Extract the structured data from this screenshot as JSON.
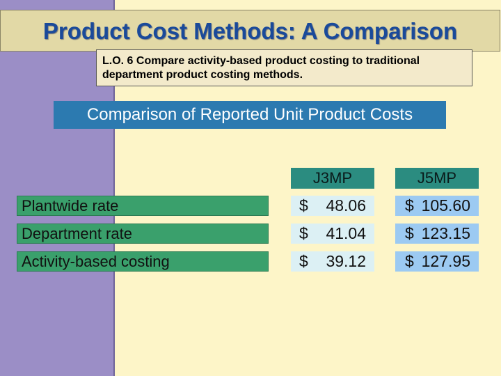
{
  "title": "Product Cost Methods: A Comparison",
  "learning_objective": {
    "line1": "L.O. 6 Compare activity-based product costing to traditional",
    "line2": "department product costing methods."
  },
  "subtitle": "Comparison of Reported Unit Product Costs",
  "table": {
    "columns": [
      "J3MP",
      "J5MP"
    ],
    "currency_symbol": "$",
    "rows": [
      {
        "label": "Plantwide rate",
        "j3mp": "48.06",
        "j5mp": "105.60"
      },
      {
        "label": "Department rate",
        "j3mp": "41.04",
        "j5mp": "123.15"
      },
      {
        "label": "Activity-based costing",
        "j3mp": "39.12",
        "j5mp": "127.95"
      }
    ]
  },
  "colors": {
    "background": "#fdf5c8",
    "sidebar": "#9b8ec6",
    "title_text": "#1a4a9a",
    "subtitle_bg": "#2c7ab0",
    "column_header_bg": "#2b8c80",
    "row_label_bg": "#3aa06c",
    "j3mp_cell_bg": "#dcf0f4",
    "j5mp_cell_bg": "#9ccaf2"
  }
}
